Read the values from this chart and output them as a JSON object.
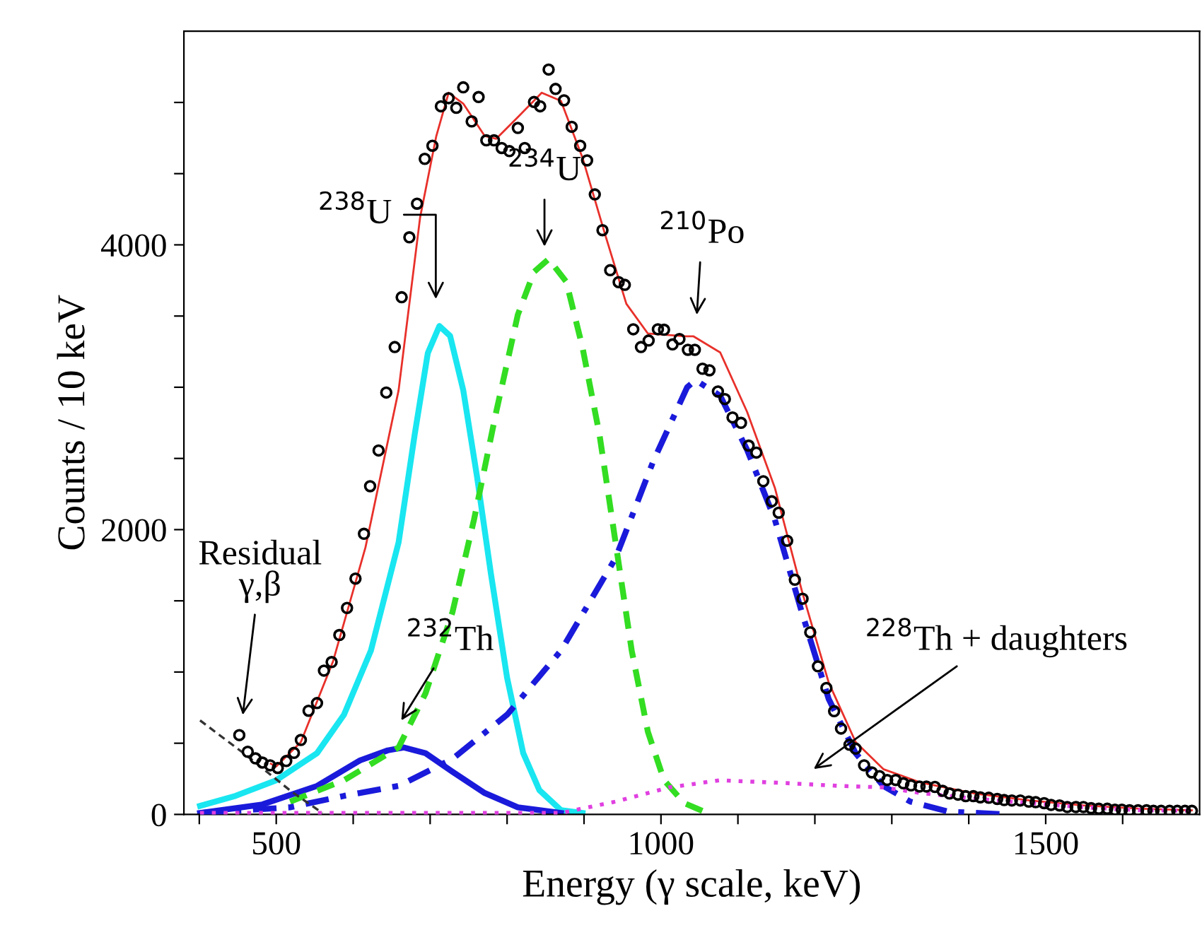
{
  "chart_data": {
    "type": "line",
    "xlabel": "Energy (γ scale, keV)",
    "ylabel": "Counts / 10 keV",
    "xlim": [
      380,
      1700
    ],
    "ylim": [
      0,
      5500
    ],
    "xticks": [
      {
        "value": 400,
        "label": null
      },
      500,
      {
        "value": 600,
        "label": null
      },
      {
        "value": 700,
        "label": null
      },
      {
        "value": 800,
        "label": null
      },
      {
        "value": 900,
        "label": null
      },
      1000,
      {
        "value": 1100,
        "label": null
      },
      {
        "value": 1200,
        "label": null
      },
      {
        "value": 1300,
        "label": null
      },
      {
        "value": 1400,
        "label": null
      },
      1500,
      {
        "value": 1600,
        "label": null
      }
    ],
    "yticks": [
      0,
      {
        "value": 500,
        "label": null
      },
      {
        "value": 1000,
        "label": null
      },
      {
        "value": 1500,
        "label": null
      },
      2000,
      {
        "value": 2500,
        "label": null
      },
      {
        "value": 3000,
        "label": null
      },
      {
        "value": 3500,
        "label": null
      },
      4000,
      {
        "value": 4500,
        "label": null
      },
      {
        "value": 5000,
        "label": null
      }
    ],
    "grid": false,
    "series": [
      {
        "color": "#19e6f0",
        "line_style": "solid",
        "x": [
          401,
          447,
          500,
          553,
          588,
          623,
          659,
          680,
          697,
          712,
          726,
          743,
          761,
          779,
          800,
          821,
          842,
          870,
          898
        ],
        "values": [
          60,
          130,
          240,
          430,
          700,
          1150,
          1910,
          2670,
          3240,
          3430,
          3360,
          2980,
          2370,
          1690,
          960,
          430,
          170,
          30,
          10
        ]
      },
      {
        "color": "#33dd22",
        "line_style": "dashed",
        "x": [
          518,
          588,
          659,
          694,
          729,
          757,
          786,
          814,
          835,
          854,
          877,
          898,
          920,
          941,
          962,
          983,
          1004,
          1030,
          1060
        ],
        "values": [
          90,
          240,
          470,
          850,
          1420,
          2070,
          2830,
          3510,
          3810,
          3900,
          3740,
          3280,
          2670,
          1910,
          1150,
          580,
          240,
          80,
          10
        ]
      },
      {
        "color": "#1a1adb",
        "line_style": "dashdot",
        "x": [
          401,
          518,
          588,
          659,
          729,
          800,
          870,
          941,
          990,
          1034,
          1045,
          1077,
          1112,
          1148,
          1183,
          1218,
          1253,
          1289,
          1324,
          1373,
          1450
        ],
        "values": [
          10,
          50,
          130,
          200,
          390,
          700,
          1150,
          1800,
          2480,
          3000,
          3050,
          2940,
          2560,
          2070,
          1420,
          810,
          430,
          200,
          90,
          20,
          0
        ]
      },
      {
        "color": "#1a1adb",
        "line_style": "solid",
        "x": [
          401,
          482,
          553,
          609,
          645,
          666,
          694,
          729,
          771,
          814,
          870
        ],
        "values": [
          10,
          70,
          200,
          380,
          450,
          470,
          430,
          300,
          150,
          50,
          10
        ]
      },
      {
        "color": "#e040e0",
        "line_style": "dotted",
        "x": [
          401,
          700,
          870,
          941,
          1011,
          1077,
          1162,
          1232,
          1289,
          1338,
          1408,
          1479,
          1549,
          1620,
          1690
        ],
        "values": [
          10,
          10,
          10,
          90,
          190,
          240,
          220,
          200,
          190,
          150,
          110,
          80,
          50,
          30,
          25
        ]
      },
      {
        "color": "#333333",
        "line_style": "dashed",
        "x": [
          401,
          460,
          520,
          560
        ],
        "values": [
          660,
          420,
          160,
          10
        ]
      },
      {
        "type": "scatter",
        "color": "#000000",
        "marker": "circle",
        "x": [
          452,
          463,
          473,
          482,
          492,
          502,
          513,
          523,
          532,
          542,
          553,
          562,
          572,
          582,
          592,
          603,
          614,
          622,
          633,
          643,
          654,
          663,
          673,
          683,
          693,
          703,
          714,
          724,
          734,
          743,
          754,
          763,
          773,
          783,
          793,
          803,
          814,
          823,
          835,
          843,
          854,
          863,
          874,
          884,
          895,
          904,
          914,
          924,
          934,
          945,
          953,
          964,
          974,
          984,
          996,
          1004,
          1015,
          1024,
          1035,
          1044,
          1054,
          1063,
          1074,
          1083,
          1093,
          1104,
          1114,
          1124,
          1133,
          1144,
          1153,
          1164,
          1174,
          1184,
          1194,
          1204,
          1215,
          1225,
          1234,
          1245,
          1253,
          1264,
          1274,
          1284,
          1294,
          1305,
          1315,
          1325,
          1336,
          1345,
          1356,
          1366,
          1375,
          1386,
          1396,
          1406,
          1415,
          1426,
          1437,
          1446,
          1456,
          1467,
          1478,
          1487,
          1498,
          1507,
          1518,
          1528,
          1539,
          1549,
          1559,
          1569,
          1580,
          1590,
          1599,
          1609,
          1620,
          1631,
          1640,
          1650,
          1661,
          1671,
          1681,
          1690
        ],
        "values": [
          557,
          440,
          394,
          364,
          345,
          326,
          375,
          432,
          523,
          728,
          782,
          1010,
          1070,
          1260,
          1450,
          1656,
          1971,
          2305,
          2556,
          2963,
          3282,
          3632,
          4053,
          4289,
          4604,
          4696,
          4973,
          5030,
          4962,
          5106,
          4867,
          5038,
          4734,
          4734,
          4680,
          4658,
          4821,
          4680,
          5003,
          4973,
          5231,
          5095,
          5015,
          4829,
          4696,
          4593,
          4354,
          4103,
          3822,
          3738,
          3719,
          3407,
          3282,
          3328,
          3407,
          3404,
          3301,
          3339,
          3263,
          3263,
          3130,
          3119,
          2970,
          2917,
          2788,
          2750,
          2590,
          2541,
          2340,
          2199,
          2119,
          1922,
          1648,
          1515,
          1279,
          1040,
          888,
          725,
          603,
          489,
          462,
          345,
          295,
          269,
          242,
          242,
          219,
          204,
          196,
          196,
          193,
          166,
          147,
          139,
          128,
          128,
          120,
          117,
          109,
          101,
          98,
          98,
          90,
          86,
          79,
          67,
          63,
          52,
          52,
          52,
          44,
          40,
          40,
          33,
          33,
          29,
          29,
          29,
          25,
          25,
          25,
          25,
          25,
          25
        ]
      },
      {
        "type": "line",
        "color": "#e8302a",
        "line_style": "solid",
        "x": [
          493,
          500,
          532,
          574,
          616,
          659,
          687,
          708,
          724,
          743,
          771,
          786,
          814,
          845,
          870,
          898,
          927,
          955,
          983,
          1032,
          1042,
          1077,
          1112,
          1148,
          1183,
          1218,
          1253,
          1289,
          1338,
          1408,
          1479,
          1549,
          1620,
          1690
        ],
        "values": [
          356,
          337,
          508,
          1078,
          1876,
          2978,
          4194,
          4764,
          5068,
          4992,
          4764,
          4745,
          4897,
          5068,
          5011,
          4612,
          4080,
          3586,
          3377,
          3358,
          3358,
          3244,
          2826,
          2294,
          1572,
          926,
          508,
          318,
          223,
          147,
          98,
          63,
          41,
          29
        ]
      }
    ],
    "annotations": [
      "$^{238}$U",
      "$^{234}$U",
      "$^{210}$Po",
      "$^{232}$Th",
      "Residual\nγ,β",
      "$^{228}$Th + daughters"
    ]
  }
}
